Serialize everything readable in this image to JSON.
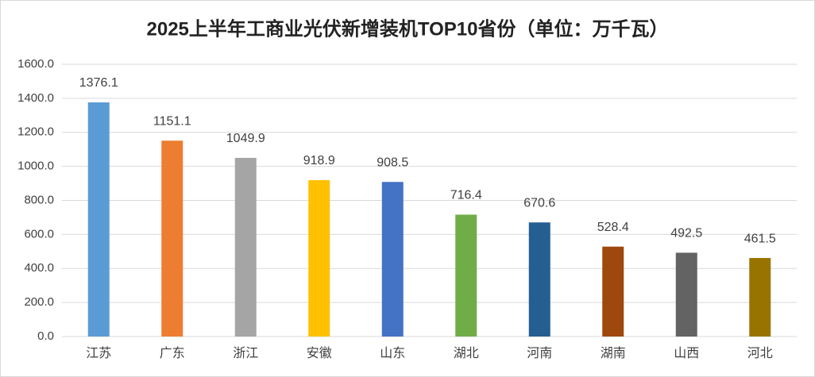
{
  "chart_data": {
    "type": "bar",
    "title": "2025上半年工商业光伏新增装机TOP10省份（单位：万千瓦）",
    "categories": [
      "江苏",
      "广东",
      "浙江",
      "安徽",
      "山东",
      "湖北",
      "河南",
      "湖南",
      "山西",
      "河北"
    ],
    "values": [
      1376.1,
      1151.1,
      1049.9,
      918.9,
      908.5,
      716.4,
      670.6,
      528.4,
      492.5,
      461.5
    ],
    "colors": [
      "#5b9bd5",
      "#ed7d31",
      "#a5a5a5",
      "#ffc000",
      "#4472c4",
      "#70ad47",
      "#255e91",
      "#9e480e",
      "#636363",
      "#997300"
    ],
    "ylim": [
      0,
      1600
    ],
    "yticks": [
      {
        "value": 0,
        "label": "0.0"
      },
      {
        "value": 200,
        "label": "200.0"
      },
      {
        "value": 400,
        "label": "400.0"
      },
      {
        "value": 600,
        "label": "600.0"
      },
      {
        "value": 800,
        "label": "800.0"
      },
      {
        "value": 1000,
        "label": "1000.0"
      },
      {
        "value": 1200,
        "label": "1200.0"
      },
      {
        "value": 1400,
        "label": "1400.0"
      },
      {
        "value": 1600,
        "label": "1600.0"
      }
    ],
    "grid": true
  }
}
